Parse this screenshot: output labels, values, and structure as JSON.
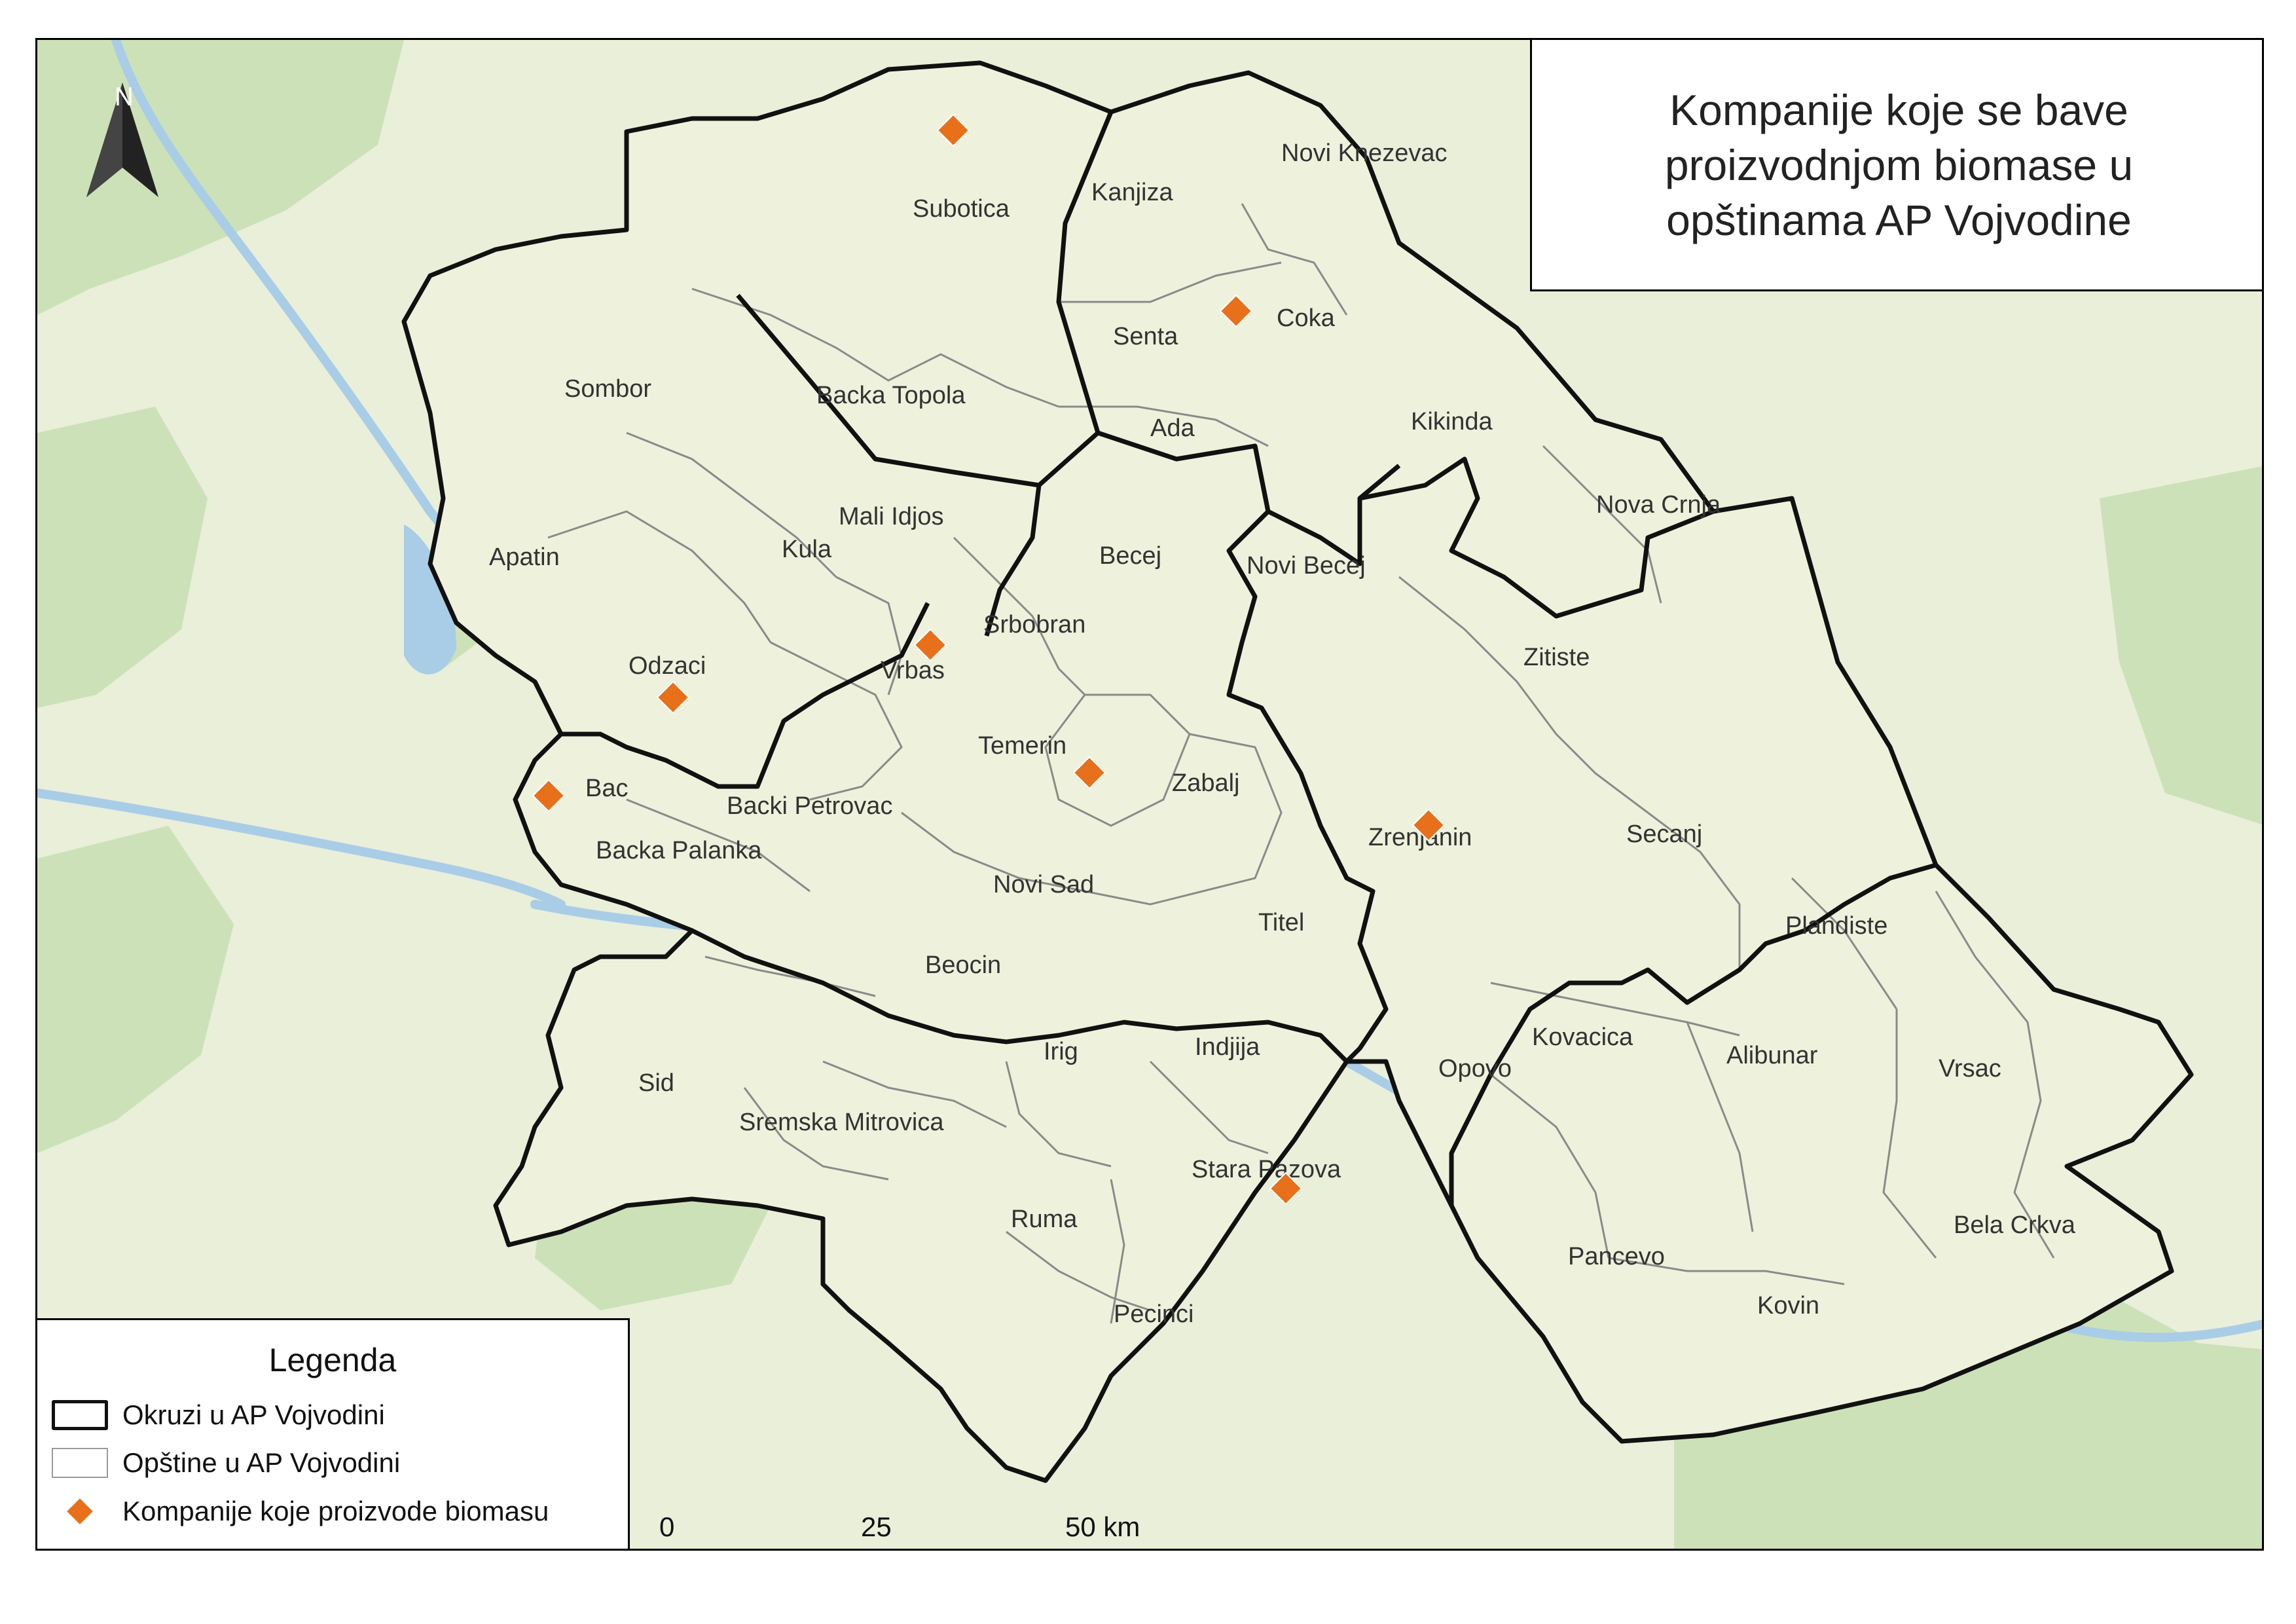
{
  "title": "Kompanije koje se bave proizvodnjom biomase u opštinama AP Vojvodine",
  "north_arrow": {
    "letter": "N",
    "icon": "north-arrow-icon"
  },
  "legend": {
    "title": "Legenda",
    "items": [
      {
        "label": "Okruzi u AP Vojvodini",
        "icon": "district-boundary-swatch"
      },
      {
        "label": "Opštine u AP Vojvodini",
        "icon": "municipality-boundary-swatch"
      },
      {
        "label": "Kompanije koje proizvode biomasu",
        "icon": "orange-diamond-marker"
      }
    ]
  },
  "scale_bar": {
    "labels": [
      "0",
      "25",
      "50 km"
    ]
  },
  "colors": {
    "company_marker": "#E8701A",
    "district_border": "#111111",
    "municipality_border": "#8a8a8a",
    "region_fill": "#eef2dc",
    "basemap": "#e9efd9",
    "forest": "#c9dfb4",
    "water": "#a9cde6"
  },
  "municipalities": [
    "Subotica",
    "Kanjiza",
    "Novi Knezevac",
    "Senta",
    "Coka",
    "Sombor",
    "Backa Topola",
    "Ada",
    "Kikinda",
    "Mali Idjos",
    "Nova Crnja",
    "Kula",
    "Apatin",
    "Becej",
    "Novi Becej",
    "Srbobran",
    "Vrbas",
    "Odzaci",
    "Zitiste",
    "Temerin",
    "Zabalj",
    "Bac",
    "Backi Petrovac",
    "Zrenjanin",
    "Secanj",
    "Backa Palanka",
    "Novi Sad",
    "Titel",
    "Plandiste",
    "Beocin",
    "Kovacica",
    "Irig",
    "Indjija",
    "Opovo",
    "Alibunar",
    "Vrsac",
    "Sid",
    "Sremska Mitrovica",
    "Stara Pazova",
    "Ruma",
    "Bela Crkva",
    "Pancevo",
    "Kovin",
    "Pecinci"
  ],
  "companies": [
    "Subotica",
    "Coka",
    "Odzaci",
    "Vrbas",
    "Temerin",
    "Bac",
    "Zrenjanin",
    "Stara Pazova"
  ]
}
